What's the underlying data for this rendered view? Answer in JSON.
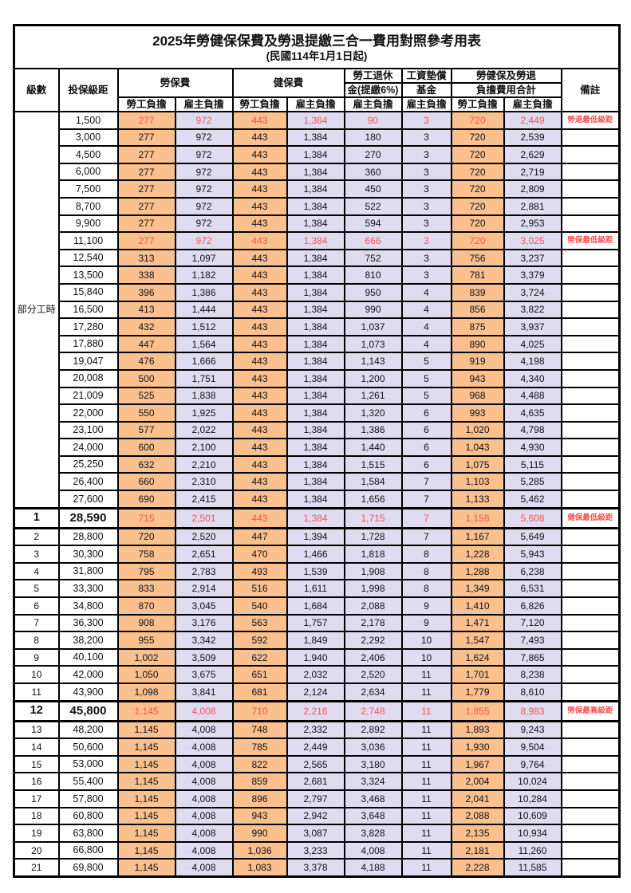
{
  "title": "2025年勞健保保費及勞退提繳三合一費用對照參考用表",
  "subtitle": "(民國114年1月1日起)",
  "header": {
    "level": "級數",
    "bracket": "投保級距",
    "labor_fee": "勞保費",
    "health_fee": "健保費",
    "pension_l1": "勞工退休",
    "pension_l2": "金(提繳6%)",
    "fund_l1": "工資墊償",
    "fund_l2": "基金",
    "total_l1": "勞健保及勞退",
    "total_l2": "負擔費用合計",
    "note": "備註",
    "employee_share": "勞工負擔",
    "employer_share": "雇主負擔"
  },
  "part_time_label": "部分工時",
  "part_time_rowspan": 23,
  "colors": {
    "employee_bg": "#FAC18F",
    "employer_bg": "#DFDCF1",
    "highlight_text": "#FA5252",
    "border": "#000000"
  },
  "notes": {
    "pension_min": "勞退最低級距",
    "labor_min": "勞保最低級距",
    "health_min": "健保最低級距",
    "labor_max": "勞保最高級距"
  },
  "rows": [
    {
      "lv": "",
      "br": "1,500",
      "v": [
        "277",
        "972",
        "443",
        "1,384",
        "90",
        "3",
        "720",
        "2,449"
      ],
      "note": "勞退最低級距",
      "red": true,
      "emph": false
    },
    {
      "lv": "",
      "br": "3,000",
      "v": [
        "277",
        "972",
        "443",
        "1,384",
        "180",
        "3",
        "720",
        "2,539"
      ],
      "note": "",
      "red": false,
      "emph": false
    },
    {
      "lv": "",
      "br": "4,500",
      "v": [
        "277",
        "972",
        "443",
        "1,384",
        "270",
        "3",
        "720",
        "2,629"
      ],
      "note": "",
      "red": false,
      "emph": false
    },
    {
      "lv": "",
      "br": "6,000",
      "v": [
        "277",
        "972",
        "443",
        "1,384",
        "360",
        "3",
        "720",
        "2,719"
      ],
      "note": "",
      "red": false,
      "emph": false
    },
    {
      "lv": "",
      "br": "7,500",
      "v": [
        "277",
        "972",
        "443",
        "1,384",
        "450",
        "3",
        "720",
        "2,809"
      ],
      "note": "",
      "red": false,
      "emph": false
    },
    {
      "lv": "",
      "br": "8,700",
      "v": [
        "277",
        "972",
        "443",
        "1,384",
        "522",
        "3",
        "720",
        "2,881"
      ],
      "note": "",
      "red": false,
      "emph": false
    },
    {
      "lv": "",
      "br": "9,900",
      "v": [
        "277",
        "972",
        "443",
        "1,384",
        "594",
        "3",
        "720",
        "2,953"
      ],
      "note": "",
      "red": false,
      "emph": false
    },
    {
      "lv": "",
      "br": "11,100",
      "v": [
        "277",
        "972",
        "443",
        "1,384",
        "666",
        "3",
        "720",
        "3,025"
      ],
      "note": "勞保最低級距",
      "red": true,
      "emph": false
    },
    {
      "lv": "",
      "br": "12,540",
      "v": [
        "313",
        "1,097",
        "443",
        "1,384",
        "752",
        "3",
        "756",
        "3,237"
      ],
      "note": "",
      "red": false,
      "emph": false
    },
    {
      "lv": "",
      "br": "13,500",
      "v": [
        "338",
        "1,182",
        "443",
        "1,384",
        "810",
        "3",
        "781",
        "3,379"
      ],
      "note": "",
      "red": false,
      "emph": false
    },
    {
      "lv": "",
      "br": "15,840",
      "v": [
        "396",
        "1,386",
        "443",
        "1,384",
        "950",
        "4",
        "839",
        "3,724"
      ],
      "note": "",
      "red": false,
      "emph": false
    },
    {
      "lv": "",
      "br": "16,500",
      "v": [
        "413",
        "1,444",
        "443",
        "1,384",
        "990",
        "4",
        "856",
        "3,822"
      ],
      "note": "",
      "red": false,
      "emph": false
    },
    {
      "lv": "",
      "br": "17,280",
      "v": [
        "432",
        "1,512",
        "443",
        "1,384",
        "1,037",
        "4",
        "875",
        "3,937"
      ],
      "note": "",
      "red": false,
      "emph": false
    },
    {
      "lv": "",
      "br": "17,880",
      "v": [
        "447",
        "1,564",
        "443",
        "1,384",
        "1,073",
        "4",
        "890",
        "4,025"
      ],
      "note": "",
      "red": false,
      "emph": false
    },
    {
      "lv": "",
      "br": "19,047",
      "v": [
        "476",
        "1,666",
        "443",
        "1,384",
        "1,143",
        "5",
        "919",
        "4,198"
      ],
      "note": "",
      "red": false,
      "emph": false
    },
    {
      "lv": "",
      "br": "20,008",
      "v": [
        "500",
        "1,751",
        "443",
        "1,384",
        "1,200",
        "5",
        "943",
        "4,340"
      ],
      "note": "",
      "red": false,
      "emph": false
    },
    {
      "lv": "",
      "br": "21,009",
      "v": [
        "525",
        "1,838",
        "443",
        "1,384",
        "1,261",
        "5",
        "968",
        "4,488"
      ],
      "note": "",
      "red": false,
      "emph": false
    },
    {
      "lv": "",
      "br": "22,000",
      "v": [
        "550",
        "1,925",
        "443",
        "1,384",
        "1,320",
        "6",
        "993",
        "4,635"
      ],
      "note": "",
      "red": false,
      "emph": false
    },
    {
      "lv": "",
      "br": "23,100",
      "v": [
        "577",
        "2,022",
        "443",
        "1,384",
        "1,386",
        "6",
        "1,020",
        "4,798"
      ],
      "note": "",
      "red": false,
      "emph": false
    },
    {
      "lv": "",
      "br": "24,000",
      "v": [
        "600",
        "2,100",
        "443",
        "1,384",
        "1,440",
        "6",
        "1,043",
        "4,930"
      ],
      "note": "",
      "red": false,
      "emph": false
    },
    {
      "lv": "",
      "br": "25,250",
      "v": [
        "632",
        "2,210",
        "443",
        "1,384",
        "1,515",
        "6",
        "1,075",
        "5,115"
      ],
      "note": "",
      "red": false,
      "emph": false
    },
    {
      "lv": "",
      "br": "26,400",
      "v": [
        "660",
        "2,310",
        "443",
        "1,384",
        "1,584",
        "7",
        "1,103",
        "5,285"
      ],
      "note": "",
      "red": false,
      "emph": false
    },
    {
      "lv": "",
      "br": "27,600",
      "v": [
        "690",
        "2,415",
        "443",
        "1,384",
        "1,656",
        "7",
        "1,133",
        "5,462"
      ],
      "note": "",
      "red": false,
      "emph": false
    },
    {
      "lv": "1",
      "br": "28,590",
      "v": [
        "715",
        "2,501",
        "443",
        "1,384",
        "1,715",
        "7",
        "1,158",
        "5,608"
      ],
      "note": "健保最低級距",
      "red": true,
      "emph": true
    },
    {
      "lv": "2",
      "br": "28,800",
      "v": [
        "720",
        "2,520",
        "447",
        "1,394",
        "1,728",
        "7",
        "1,167",
        "5,649"
      ],
      "note": "",
      "red": false,
      "emph": false
    },
    {
      "lv": "3",
      "br": "30,300",
      "v": [
        "758",
        "2,651",
        "470",
        "1,466",
        "1,818",
        "8",
        "1,228",
        "5,943"
      ],
      "note": "",
      "red": false,
      "emph": false
    },
    {
      "lv": "4",
      "br": "31,800",
      "v": [
        "795",
        "2,783",
        "493",
        "1,539",
        "1,908",
        "8",
        "1,288",
        "6,238"
      ],
      "note": "",
      "red": false,
      "emph": false
    },
    {
      "lv": "5",
      "br": "33,300",
      "v": [
        "833",
        "2,914",
        "516",
        "1,611",
        "1,998",
        "8",
        "1,349",
        "6,531"
      ],
      "note": "",
      "red": false,
      "emph": false
    },
    {
      "lv": "6",
      "br": "34,800",
      "v": [
        "870",
        "3,045",
        "540",
        "1,684",
        "2,088",
        "9",
        "1,410",
        "6,826"
      ],
      "note": "",
      "red": false,
      "emph": false
    },
    {
      "lv": "7",
      "br": "36,300",
      "v": [
        "908",
        "3,176",
        "563",
        "1,757",
        "2,178",
        "9",
        "1,471",
        "7,120"
      ],
      "note": "",
      "red": false,
      "emph": false
    },
    {
      "lv": "8",
      "br": "38,200",
      "v": [
        "955",
        "3,342",
        "592",
        "1,849",
        "2,292",
        "10",
        "1,547",
        "7,493"
      ],
      "note": "",
      "red": false,
      "emph": false
    },
    {
      "lv": "9",
      "br": "40,100",
      "v": [
        "1,002",
        "3,509",
        "622",
        "1,940",
        "2,406",
        "10",
        "1,624",
        "7,865"
      ],
      "note": "",
      "red": false,
      "emph": false
    },
    {
      "lv": "10",
      "br": "42,000",
      "v": [
        "1,050",
        "3,675",
        "651",
        "2,032",
        "2,520",
        "11",
        "1,701",
        "8,238"
      ],
      "note": "",
      "red": false,
      "emph": false
    },
    {
      "lv": "11",
      "br": "43,900",
      "v": [
        "1,098",
        "3,841",
        "681",
        "2,124",
        "2,634",
        "11",
        "1,779",
        "8,610"
      ],
      "note": "",
      "red": false,
      "emph": false
    },
    {
      "lv": "12",
      "br": "45,800",
      "v": [
        "1,145",
        "4,008",
        "710",
        "2,216",
        "2,748",
        "11",
        "1,855",
        "8,983"
      ],
      "note": "勞保最高級距",
      "red": true,
      "emph": true
    },
    {
      "lv": "13",
      "br": "48,200",
      "v": [
        "1,145",
        "4,008",
        "748",
        "2,332",
        "2,892",
        "11",
        "1,893",
        "9,243"
      ],
      "note": "",
      "red": false,
      "emph": false
    },
    {
      "lv": "14",
      "br": "50,600",
      "v": [
        "1,145",
        "4,008",
        "785",
        "2,449",
        "3,036",
        "11",
        "1,930",
        "9,504"
      ],
      "note": "",
      "red": false,
      "emph": false
    },
    {
      "lv": "15",
      "br": "53,000",
      "v": [
        "1,145",
        "4,008",
        "822",
        "2,565",
        "3,180",
        "11",
        "1,967",
        "9,764"
      ],
      "note": "",
      "red": false,
      "emph": false
    },
    {
      "lv": "16",
      "br": "55,400",
      "v": [
        "1,145",
        "4,008",
        "859",
        "2,681",
        "3,324",
        "11",
        "2,004",
        "10,024"
      ],
      "note": "",
      "red": false,
      "emph": false
    },
    {
      "lv": "17",
      "br": "57,800",
      "v": [
        "1,145",
        "4,008",
        "896",
        "2,797",
        "3,468",
        "11",
        "2,041",
        "10,284"
      ],
      "note": "",
      "red": false,
      "emph": false
    },
    {
      "lv": "18",
      "br": "60,800",
      "v": [
        "1,145",
        "4,008",
        "943",
        "2,942",
        "3,648",
        "11",
        "2,088",
        "10,609"
      ],
      "note": "",
      "red": false,
      "emph": false
    },
    {
      "lv": "19",
      "br": "63,800",
      "v": [
        "1,145",
        "4,008",
        "990",
        "3,087",
        "3,828",
        "11",
        "2,135",
        "10,934"
      ],
      "note": "",
      "red": false,
      "emph": false
    },
    {
      "lv": "20",
      "br": "66,800",
      "v": [
        "1,145",
        "4,008",
        "1,036",
        "3,233",
        "4,008",
        "11",
        "2,181",
        "11,260"
      ],
      "note": "",
      "red": false,
      "emph": false
    },
    {
      "lv": "21",
      "br": "69,800",
      "v": [
        "1,145",
        "4,008",
        "1,083",
        "3,378",
        "4,188",
        "11",
        "2,228",
        "11,585"
      ],
      "note": "",
      "red": false,
      "emph": false
    }
  ]
}
